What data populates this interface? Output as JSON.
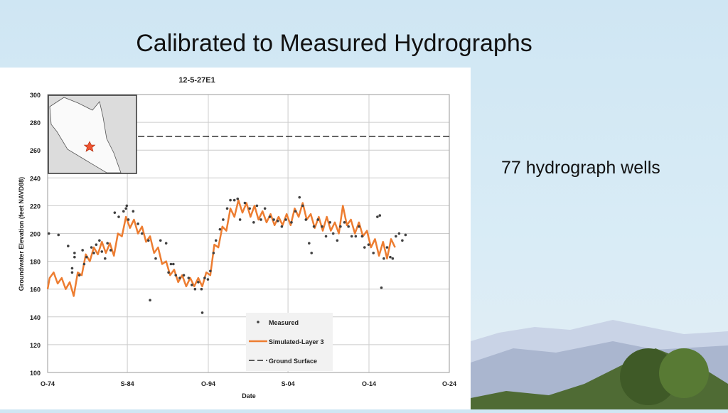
{
  "slide": {
    "title": "Calibrated to Measured Hydrographs",
    "note": "77 hydrograph wells"
  },
  "chart_data": {
    "type": "line",
    "title": "12-5-27E1",
    "xlabel": "Date",
    "ylabel": "Groundwater Elevation (feet NAVD88)",
    "xlim": [
      1974.75,
      2024.75
    ],
    "ylim": [
      100,
      300
    ],
    "xticks": [
      {
        "v": 1974.75,
        "label": "O-74"
      },
      {
        "v": 1984.67,
        "label": "S-84"
      },
      {
        "v": 1994.75,
        "label": "O-94"
      },
      {
        "v": 2004.67,
        "label": "S-04"
      },
      {
        "v": 2014.75,
        "label": "O-14"
      },
      {
        "v": 2024.75,
        "label": "O-24"
      }
    ],
    "yticks": [
      100,
      120,
      140,
      160,
      180,
      200,
      220,
      240,
      260,
      280,
      300
    ],
    "grid": true,
    "legend_placement": "bottom-center",
    "colors": {
      "simulated": "#ed7d31",
      "measured": "#404040",
      "ground": "#000000"
    },
    "series": [
      {
        "name": "Measured",
        "type": "scatter",
        "points": [
          [
            1974.9,
            200
          ],
          [
            1976.1,
            199
          ],
          [
            1977.3,
            191
          ],
          [
            1977.8,
            175
          ],
          [
            1977.8,
            172
          ],
          [
            1978.1,
            186
          ],
          [
            1978.1,
            183
          ],
          [
            1978.7,
            170
          ],
          [
            1979.1,
            188
          ],
          [
            1979.3,
            178
          ],
          [
            1979.6,
            183
          ],
          [
            1980.2,
            190
          ],
          [
            1980.5,
            186
          ],
          [
            1980.8,
            192
          ],
          [
            1981.2,
            195
          ],
          [
            1981.5,
            187
          ],
          [
            1981.9,
            182
          ],
          [
            1982.2,
            193
          ],
          [
            1982.6,
            188
          ],
          [
            1983.1,
            215
          ],
          [
            1983.6,
            212
          ],
          [
            1984.2,
            216
          ],
          [
            1984.5,
            218
          ],
          [
            1984.6,
            220
          ],
          [
            1984.8,
            210
          ],
          [
            1985.4,
            216
          ],
          [
            1986,
            207
          ],
          [
            1986.5,
            200
          ],
          [
            1987.3,
            195
          ],
          [
            1987.5,
            152
          ],
          [
            1988.2,
            182
          ],
          [
            1988.8,
            195
          ],
          [
            1989.5,
            193
          ],
          [
            1989.8,
            172
          ],
          [
            1990.1,
            178
          ],
          [
            1990.4,
            178
          ],
          [
            1990.7,
            170
          ],
          [
            1991.2,
            168
          ],
          [
            1991.7,
            170
          ],
          [
            1992.3,
            168
          ],
          [
            1992.7,
            163
          ],
          [
            1993.1,
            160
          ],
          [
            1993.5,
            165
          ],
          [
            1993.9,
            160
          ],
          [
            1994,
            143
          ],
          [
            1994.3,
            168
          ],
          [
            1994.7,
            167
          ],
          [
            1995,
            173
          ],
          [
            1995.4,
            186
          ],
          [
            1995.7,
            195
          ],
          [
            1996.2,
            203
          ],
          [
            1996.6,
            210
          ],
          [
            1997.1,
            218
          ],
          [
            1997.5,
            224
          ],
          [
            1998,
            224
          ],
          [
            1998.4,
            225
          ],
          [
            1998.7,
            210
          ],
          [
            1999.3,
            222
          ],
          [
            1999.9,
            218
          ],
          [
            2000.4,
            208
          ],
          [
            2000.8,
            220
          ],
          [
            2001.3,
            210
          ],
          [
            2001.8,
            218
          ],
          [
            2002.4,
            212
          ],
          [
            2002.9,
            210
          ],
          [
            2003.4,
            209
          ],
          [
            2003.9,
            205
          ],
          [
            2004.4,
            210
          ],
          [
            2005.1,
            208
          ],
          [
            2005.6,
            216
          ],
          [
            2006.1,
            226
          ],
          [
            2006.5,
            220
          ],
          [
            2006.9,
            210
          ],
          [
            2007.3,
            193
          ],
          [
            2007.6,
            186
          ],
          [
            2007.9,
            205
          ],
          [
            2008.4,
            210
          ],
          [
            2008.9,
            205
          ],
          [
            2009.4,
            198
          ],
          [
            2009.9,
            208
          ],
          [
            2010.3,
            200
          ],
          [
            2010.8,
            195
          ],
          [
            2011.2,
            205
          ],
          [
            2011.7,
            208
          ],
          [
            2012.2,
            205
          ],
          [
            2012.6,
            198
          ],
          [
            2013.1,
            198
          ],
          [
            2013.5,
            205
          ],
          [
            2013.9,
            198
          ],
          [
            2014.2,
            190
          ],
          [
            2014.7,
            192
          ],
          [
            2015.3,
            186
          ],
          [
            2015.8,
            212
          ],
          [
            2016.1,
            213
          ],
          [
            2016.3,
            161
          ],
          [
            2016.6,
            182
          ],
          [
            2017,
            190
          ],
          [
            2017.4,
            183
          ],
          [
            2017.7,
            182
          ],
          [
            2018.1,
            198
          ],
          [
            2018.5,
            200
          ],
          [
            2018.9,
            195
          ],
          [
            2019.3,
            199
          ]
        ]
      },
      {
        "name": "Simulated-Layer 3",
        "type": "line",
        "points": [
          [
            1974.75,
            160
          ],
          [
            1975,
            168
          ],
          [
            1975.5,
            172
          ],
          [
            1976,
            164
          ],
          [
            1976.5,
            168
          ],
          [
            1977,
            160
          ],
          [
            1977.5,
            165
          ],
          [
            1978,
            155
          ],
          [
            1978.5,
            172
          ],
          [
            1979,
            170
          ],
          [
            1979.5,
            185
          ],
          [
            1980,
            180
          ],
          [
            1980.5,
            190
          ],
          [
            1981,
            185
          ],
          [
            1981.5,
            194
          ],
          [
            1982,
            186
          ],
          [
            1982.5,
            193
          ],
          [
            1983,
            184
          ],
          [
            1983.5,
            200
          ],
          [
            1984,
            198
          ],
          [
            1984.5,
            212
          ],
          [
            1985,
            204
          ],
          [
            1985.5,
            210
          ],
          [
            1986,
            200
          ],
          [
            1986.5,
            205
          ],
          [
            1987,
            194
          ],
          [
            1987.5,
            198
          ],
          [
            1988,
            186
          ],
          [
            1988.5,
            190
          ],
          [
            1989,
            178
          ],
          [
            1989.5,
            180
          ],
          [
            1990,
            170
          ],
          [
            1990.5,
            174
          ],
          [
            1991,
            165
          ],
          [
            1991.5,
            170
          ],
          [
            1992,
            162
          ],
          [
            1992.5,
            168
          ],
          [
            1993,
            162
          ],
          [
            1993.5,
            168
          ],
          [
            1994,
            162
          ],
          [
            1994.5,
            172
          ],
          [
            1995,
            170
          ],
          [
            1995.5,
            192
          ],
          [
            1996,
            190
          ],
          [
            1996.5,
            205
          ],
          [
            1997,
            202
          ],
          [
            1997.5,
            218
          ],
          [
            1998,
            212
          ],
          [
            1998.5,
            224
          ],
          [
            1999,
            215
          ],
          [
            1999.5,
            222
          ],
          [
            2000,
            212
          ],
          [
            2000.5,
            220
          ],
          [
            2001,
            210
          ],
          [
            2001.5,
            216
          ],
          [
            2002,
            208
          ],
          [
            2002.5,
            214
          ],
          [
            2003,
            206
          ],
          [
            2003.5,
            212
          ],
          [
            2004,
            206
          ],
          [
            2004.5,
            214
          ],
          [
            2005,
            206
          ],
          [
            2005.5,
            218
          ],
          [
            2006,
            212
          ],
          [
            2006.5,
            222
          ],
          [
            2007,
            210
          ],
          [
            2007.5,
            214
          ],
          [
            2008,
            204
          ],
          [
            2008.5,
            212
          ],
          [
            2009,
            202
          ],
          [
            2009.5,
            212
          ],
          [
            2010,
            202
          ],
          [
            2010.5,
            208
          ],
          [
            2011,
            200
          ],
          [
            2011.5,
            220
          ],
          [
            2012,
            206
          ],
          [
            2012.5,
            210
          ],
          [
            2013,
            200
          ],
          [
            2013.5,
            208
          ],
          [
            2014,
            198
          ],
          [
            2014.5,
            202
          ],
          [
            2015,
            190
          ],
          [
            2015.5,
            196
          ],
          [
            2016,
            184
          ],
          [
            2016.5,
            194
          ],
          [
            2017,
            182
          ],
          [
            2017.5,
            196
          ],
          [
            2018,
            190
          ]
        ]
      },
      {
        "name": "Ground Surface",
        "type": "line",
        "dashed": true,
        "points": [
          [
            1986,
            270
          ],
          [
            2024.75,
            270
          ]
        ]
      }
    ]
  }
}
